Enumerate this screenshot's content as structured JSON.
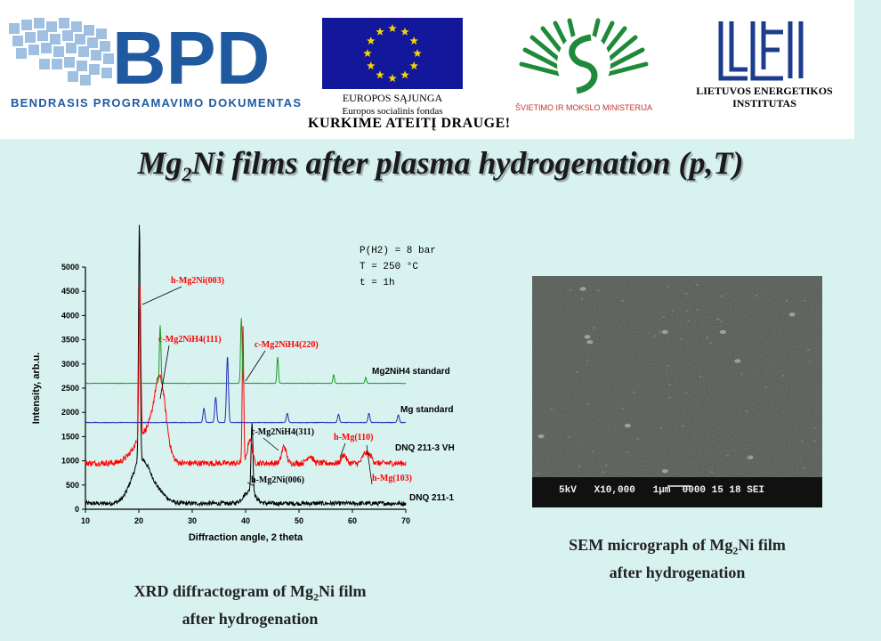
{
  "header": {
    "bpd_text": "BPD",
    "bpd_subtitle": "BENDRASIS PROGRAMAVIMO DOKUMENTAS",
    "eu_line1": "EUROPOS SĄJUNGA",
    "eu_line2": "Europos socialinis fondas",
    "ministry": "ŠVIETIMO IR MOKSLO MINISTERIJA",
    "lei_line1": "LIETUVOS ENERGETIKOS",
    "lei_line2": "INSTITUTAS",
    "slogan": "KURKIME ATEITĮ DRAUGE!",
    "colors": {
      "bpd_blue": "#1f5aa0",
      "eu_blue": "#13189a",
      "eu_star": "#f5d400",
      "ministry_green": "#1e8a3a",
      "lei_blue": "#1c3c8c"
    }
  },
  "title": {
    "pre": "Mg",
    "sub": "2",
    "post": "Ni films after plasma hydrogenation (p,T)"
  },
  "xrd_caption": {
    "pre": "XRD diffractogram of Mg",
    "sub": "2",
    "post": "Ni film",
    "line2": "after hydrogenation"
  },
  "sem_caption": {
    "pre": "SEM micrograph of Mg",
    "sub": "2",
    "post": "Ni film",
    "line2": "after hydrogenation"
  },
  "sem": {
    "scale_label": "5kV   X10,000   1μm  0000 15 18 SEI"
  },
  "chart_data": {
    "type": "line",
    "xlabel": "Diffraction angle, 2 theta",
    "ylabel": "Intensity, arb.u.",
    "xlim": [
      10,
      70
    ],
    "ylim": [
      0,
      5000
    ],
    "x_ticks": [
      10,
      20,
      30,
      40,
      50,
      60,
      70
    ],
    "y_ticks": [
      0,
      500,
      1000,
      1500,
      2000,
      2500,
      3000,
      3500,
      4000,
      4500,
      5000
    ],
    "conditions": [
      "P(H2) = 8 bar",
      "T = 250 °C",
      "t = 1h"
    ],
    "series": [
      {
        "name": "DNQ 211-1",
        "color": "#000000",
        "baseline": 120,
        "peaks": [
          [
            20.1,
            4900,
            0.22
          ],
          [
            20.5,
            900,
            2.5
          ],
          [
            41.2,
            1450,
            0.25
          ],
          [
            40.7,
            250,
            1.5
          ],
          [
            24.0,
            150,
            2.0
          ]
        ]
      },
      {
        "name": "DNQ 211-3 VH",
        "color": "#ff0000",
        "baseline": 950,
        "peaks": [
          [
            20.2,
            3200,
            0.25
          ],
          [
            21.5,
            650,
            3.0
          ],
          [
            24.0,
            1450,
            1.5
          ],
          [
            39.5,
            2800,
            0.2
          ],
          [
            40.8,
            500,
            0.6
          ],
          [
            47.2,
            350,
            0.6
          ],
          [
            52.0,
            150,
            0.8
          ],
          [
            58.4,
            180,
            0.6
          ],
          [
            62.4,
            200,
            0.7
          ],
          [
            63.4,
            130,
            0.6
          ]
        ]
      },
      {
        "name": "Mg standard",
        "color": "#1f2fb4",
        "baseline": 1790,
        "peaks": [
          [
            32.2,
            300,
            0.25
          ],
          [
            34.4,
            520,
            0.25
          ],
          [
            36.6,
            1380,
            0.25
          ],
          [
            47.8,
            190,
            0.25
          ],
          [
            57.4,
            170,
            0.25
          ],
          [
            63.1,
            190,
            0.25
          ],
          [
            68.6,
            160,
            0.25
          ]
        ]
      },
      {
        "name": "Mg2NiH4 standard",
        "color": "#1e9a28",
        "baseline": 2600,
        "peaks": [
          [
            24.0,
            1200,
            0.2
          ],
          [
            39.2,
            1350,
            0.2
          ],
          [
            46.0,
            550,
            0.2
          ],
          [
            56.5,
            180,
            0.2
          ],
          [
            62.5,
            120,
            0.2
          ]
        ]
      }
    ],
    "annotations": [
      {
        "label": "h-Mg2Ni(003)",
        "color": "#ff0000"
      },
      {
        "label": "c-Mg2NiH4(111)",
        "color": "#ff0000"
      },
      {
        "label": "c-Mg2NiH4(220)",
        "color": "#ff0000"
      },
      {
        "label": "c-Mg2NiH4(311)",
        "color": "#000000"
      },
      {
        "label": "h-Mg(110)",
        "color": "#ff0000"
      },
      {
        "label": "h-Mg(103)",
        "color": "#ff0000"
      },
      {
        "label": "h-Mg2Ni(006)",
        "color": "#000000"
      }
    ]
  }
}
